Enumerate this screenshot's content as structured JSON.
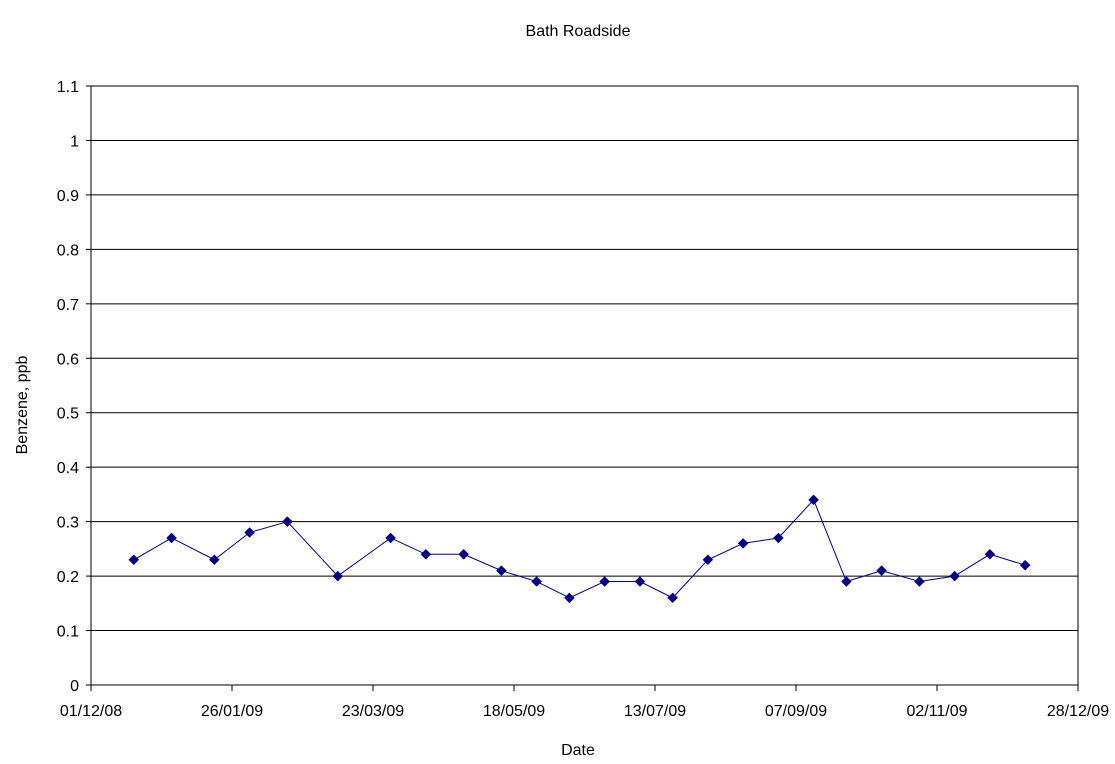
{
  "chart_data": {
    "type": "line",
    "title": "Bath Roadside",
    "xlabel": "Date",
    "ylabel": "Benzene, ppb",
    "x_axis": {
      "kind": "date",
      "range": [
        "2008-12-01",
        "2009-12-28"
      ],
      "tick_labels": [
        "01/12/08",
        "26/01/09",
        "23/03/09",
        "18/05/09",
        "13/07/09",
        "07/09/09",
        "02/11/09",
        "28/12/09"
      ]
    },
    "y_axis": {
      "range": [
        0,
        1.1
      ],
      "tick_labels": [
        "0",
        "0.1",
        "0.2",
        "0.3",
        "0.4",
        "0.5",
        "0.6",
        "0.7",
        "0.8",
        "0.9",
        "1",
        "1.1"
      ]
    },
    "grid": "horizontal",
    "legend": "none",
    "colors": {
      "series": "#000080",
      "axis": "#000000",
      "grid": "#000000"
    },
    "marker": "diamond",
    "series": [
      {
        "x": [
          "2008-12-18",
          "2009-01-02",
          "2009-01-19",
          "2009-02-02",
          "2009-02-17",
          "2009-03-09",
          "2009-03-30",
          "2009-04-13",
          "2009-04-28",
          "2009-05-13",
          "2009-05-27",
          "2009-06-09",
          "2009-06-23",
          "2009-07-07",
          "2009-07-20",
          "2009-08-03",
          "2009-08-17",
          "2009-08-31",
          "2009-09-14",
          "2009-09-27",
          "2009-10-11",
          "2009-10-26",
          "2009-11-09",
          "2009-11-23",
          "2009-12-07"
        ],
        "y": [
          0.23,
          0.27,
          0.23,
          0.28,
          0.3,
          0.2,
          0.27,
          0.24,
          0.24,
          0.21,
          0.19,
          0.16,
          0.19,
          0.19,
          0.16,
          0.23,
          0.26,
          0.27,
          0.34,
          0.19,
          0.21,
          0.19,
          0.2,
          0.24,
          0.22
        ]
      }
    ]
  }
}
